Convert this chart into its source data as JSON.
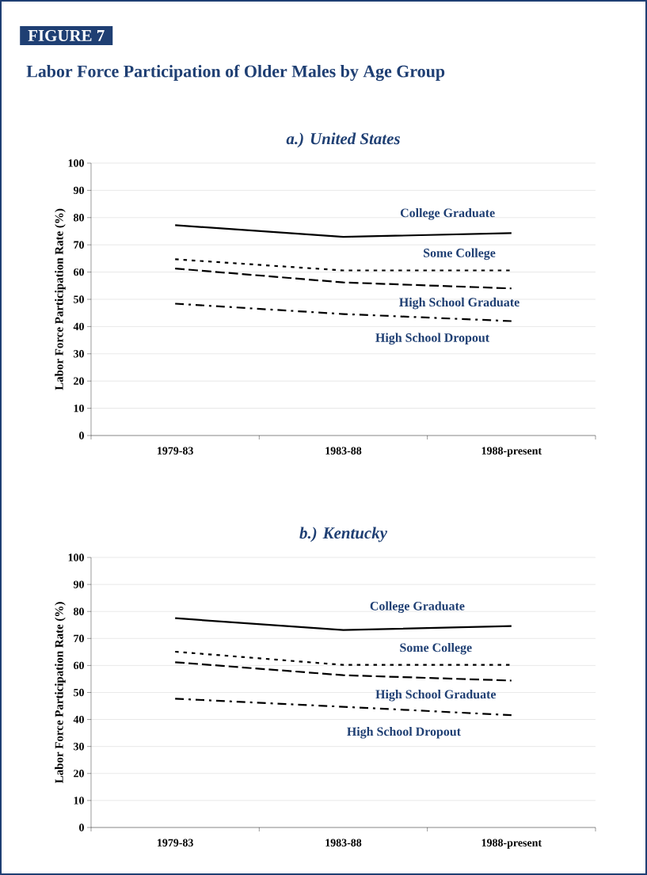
{
  "chart_data": [
    {
      "type": "line",
      "title": "a.) United States",
      "ylabel": "Labor Force Participation Rate (%)",
      "annotations": [
        "FIGURE 7",
        "Labor Force Participation of Older Males by Age Group"
      ],
      "categories": [
        "1979-83",
        "1983-88",
        "1988-present"
      ],
      "ylim": [
        0,
        100
      ],
      "yticks": [
        0,
        10,
        20,
        30,
        40,
        50,
        60,
        70,
        80,
        90,
        100
      ],
      "grid": "y",
      "series": [
        {
          "name": "College Graduate",
          "color": "#000000",
          "line_style": "solid",
          "values": [
            77.2,
            72.9,
            74.3
          ]
        },
        {
          "name": "Some College",
          "color": "#000000",
          "line_style": "dotted",
          "values": [
            64.7,
            60.6,
            60.6
          ]
        },
        {
          "name": "High School Graduate",
          "color": "#000000",
          "line_style": "dashed",
          "values": [
            61.3,
            56.2,
            54.0
          ]
        },
        {
          "name": "High School Dropout",
          "color": "#000000",
          "line_style": "dashdot",
          "values": [
            48.4,
            44.6,
            42.0
          ]
        }
      ]
    },
    {
      "type": "line",
      "title": "b.) Kentucky",
      "ylabel": "Labor Force Participation Rate (%)",
      "categories": [
        "1979-83",
        "1983-88",
        "1988-present"
      ],
      "ylim": [
        0,
        100
      ],
      "yticks": [
        0,
        10,
        20,
        30,
        40,
        50,
        60,
        70,
        80,
        90,
        100
      ],
      "grid": "y",
      "series": [
        {
          "name": "College Graduate",
          "color": "#000000",
          "line_style": "solid",
          "values": [
            77.5,
            73.1,
            74.6
          ]
        },
        {
          "name": "Some College",
          "color": "#000000",
          "line_style": "dotted",
          "values": [
            65.1,
            60.2,
            60.2
          ]
        },
        {
          "name": "High School Graduate",
          "color": "#000000",
          "line_style": "dashed",
          "values": [
            61.2,
            56.4,
            54.4
          ]
        },
        {
          "name": "High School Dropout",
          "color": "#000000",
          "line_style": "dashdot",
          "values": [
            47.7,
            44.7,
            41.6
          ]
        }
      ]
    }
  ]
}
